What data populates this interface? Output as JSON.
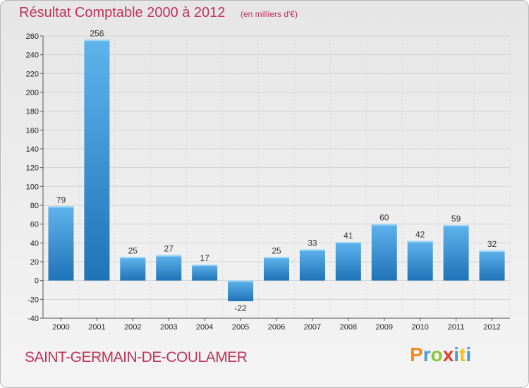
{
  "chart_data": {
    "type": "bar",
    "title": "Résultat Comptable 2000 à 2012",
    "subtitle": "(en milliers d'€)",
    "categories": [
      "2000",
      "2001",
      "2002",
      "2003",
      "2004",
      "2005",
      "2006",
      "2007",
      "2008",
      "2009",
      "2010",
      "2011",
      "2012"
    ],
    "values": [
      79,
      256,
      25,
      27,
      17,
      -22,
      25,
      33,
      41,
      60,
      42,
      59,
      32
    ],
    "ylim": [
      -40,
      260
    ],
    "yticks": [
      -40,
      -20,
      0,
      20,
      40,
      60,
      80,
      100,
      120,
      140,
      160,
      180,
      200,
      220,
      240,
      260
    ],
    "grid": true,
    "xlabel": "",
    "ylabel": ""
  },
  "footer": {
    "commune": "SAINT-GERMAIN-DE-COULAMER",
    "brand_letters": [
      "P",
      "r",
      "o",
      "x",
      "i",
      "t",
      "i"
    ]
  },
  "colors": {
    "title": "#c0325a",
    "bar_light": "#5fb3ec",
    "bar_dark": "#1f73b7",
    "brand": [
      "#f28c1a",
      "#4a9ad8",
      "#8cc43c",
      "#e43c2c",
      "#4a9ad8",
      "#f2c21a",
      "#4a9ad8"
    ]
  }
}
